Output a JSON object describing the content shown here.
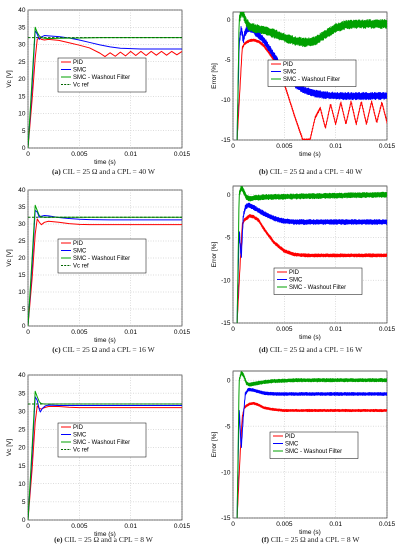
{
  "captions": [
    {
      "letter": "(a)",
      "text": "CIL = 25 Ω and a CPL = 40 W"
    },
    {
      "letter": "(b)",
      "text": "CIL = 25 Ω and a CPL = 40 W"
    },
    {
      "letter": "(c)",
      "text": "CIL = 25 Ω and a CPL = 16 W"
    },
    {
      "letter": "(d)",
      "text": "CIL = 25 Ω and a CPL = 16 W"
    },
    {
      "letter": "(e)",
      "text": "CIL = 25 Ω and a CPL = 8 W"
    },
    {
      "letter": "(f)",
      "text": "CIL = 25 Ω and a CPL = 8 W"
    }
  ],
  "colors": {
    "pid": "#ff0000",
    "smc": "#0000ff",
    "washout": "#00a000",
    "ref": "#006400"
  },
  "chart_data": [
    {
      "id": "a",
      "type": "line",
      "xlabel": "time (s)",
      "ylabel": "Vc [V]",
      "xlim": [
        0,
        0.015
      ],
      "ylim": [
        0,
        40
      ],
      "xticks": [
        0,
        0.005,
        0.01,
        0.015
      ],
      "xtick_labels": [
        "0",
        "0.005",
        "0.01",
        "0.015"
      ],
      "yticks": [
        0,
        5,
        10,
        15,
        20,
        25,
        30,
        35,
        40
      ],
      "ytick_labels": [
        "0",
        "5",
        "10",
        "15",
        "20",
        "25",
        "30",
        "35",
        "40"
      ],
      "grid": true,
      "legend_position": "center",
      "series": [
        {
          "name": "PID",
          "color": "#ff0000",
          "x": [
            0,
            0.0004,
            0.0007,
            0.0009,
            0.0011,
            0.0013,
            0.0016,
            0.002,
            0.003,
            0.004,
            0.005,
            0.006,
            0.007,
            0.0075,
            0.008,
            0.0085,
            0.009,
            0.0095,
            0.01,
            0.0105,
            0.011,
            0.0115,
            0.012,
            0.0125,
            0.013,
            0.0135,
            0.014,
            0.0145,
            0.015
          ],
          "y": [
            0,
            14,
            26,
            31.5,
            32,
            31.5,
            31.3,
            31.5,
            31.2,
            30.5,
            29.8,
            29,
            27.5,
            26.5,
            27.6,
            26.6,
            27.8,
            26.7,
            28,
            26.8,
            28,
            26.8,
            28,
            26.9,
            28,
            26.9,
            28,
            27,
            28
          ]
        },
        {
          "name": "SMC",
          "color": "#0000ff",
          "x": [
            0,
            0.0004,
            0.0007,
            0.0009,
            0.0011,
            0.0013,
            0.0016,
            0.002,
            0.003,
            0.004,
            0.005,
            0.006,
            0.007,
            0.008,
            0.009,
            0.01,
            0.011,
            0.012,
            0.013,
            0.014,
            0.015
          ],
          "y": [
            0,
            18,
            34,
            33,
            31.5,
            32.2,
            32.6,
            32.5,
            32.3,
            31.9,
            31.3,
            30.6,
            29.9,
            29.3,
            28.9,
            28.8,
            28.7,
            28.7,
            28.7,
            28.7,
            28.7
          ]
        },
        {
          "name": "SMC - Washout Filter",
          "color": "#00a000",
          "x": [
            0,
            0.0004,
            0.0007,
            0.0009,
            0.0011,
            0.0013,
            0.0016,
            0.002,
            0.003,
            0.005,
            0.007,
            0.009,
            0.011,
            0.013,
            0.015
          ],
          "y": [
            0,
            20,
            35,
            33.5,
            32.5,
            32,
            31.8,
            31.7,
            31.8,
            31.9,
            32,
            32,
            32,
            32,
            32
          ]
        },
        {
          "name": "Vc ref",
          "color": "#006400",
          "dashed": true,
          "x": [
            0,
            0.015
          ],
          "y": [
            32,
            32
          ]
        }
      ]
    },
    {
      "id": "b",
      "type": "line",
      "xlabel": "time (s)",
      "ylabel": "Error [%]",
      "xlim": [
        0,
        0.015
      ],
      "ylim": [
        -15,
        1
      ],
      "xticks": [
        0,
        0.005,
        0.01,
        0.015
      ],
      "xtick_labels": [
        "0",
        "0.005",
        "0.01",
        "0.015"
      ],
      "yticks": [
        -15,
        -10,
        -5,
        0
      ],
      "ytick_labels": [
        "-15",
        "-10",
        "-5",
        "0"
      ],
      "grid": true,
      "legend_position": "center",
      "series": [
        {
          "name": "PID",
          "color": "#ff0000",
          "noise": 0.15,
          "x": [
            0.0004,
            0.0007,
            0.0009,
            0.0011,
            0.0013,
            0.0016,
            0.002,
            0.0025,
            0.003,
            0.004,
            0.005,
            0.006,
            0.0068,
            0.0075,
            0.008,
            0.0085,
            0.009,
            0.0095,
            0.01,
            0.0105,
            0.011,
            0.0115,
            0.012,
            0.0125,
            0.013,
            0.0135,
            0.014,
            0.0145,
            0.015
          ],
          "y": [
            -15,
            -8,
            -3.5,
            -3,
            -2.8,
            -2.6,
            -2.5,
            -2.7,
            -3.2,
            -5,
            -8,
            -12,
            -15,
            -15,
            -12.2,
            -11,
            -13.5,
            -10.5,
            -13,
            -10.3,
            -13,
            -10.2,
            -13,
            -10.2,
            -13,
            -10.2,
            -12.8,
            -10.3,
            -12.8
          ]
        },
        {
          "name": "SMC",
          "color": "#0000ff",
          "noise": 0.45,
          "x": [
            0.0004,
            0.0006,
            0.0008,
            0.001,
            0.0012,
            0.0015,
            0.002,
            0.003,
            0.004,
            0.005,
            0.006,
            0.007,
            0.008,
            0.009,
            0.01,
            0.012,
            0.015
          ],
          "y": [
            -15,
            -3,
            -1,
            -2.5,
            -1.5,
            -1,
            -1.3,
            -2.5,
            -4.5,
            -6.5,
            -8,
            -8.8,
            -9.2,
            -9.4,
            -9.5,
            -9.5,
            -9.5
          ]
        },
        {
          "name": "SMC - Washout Filter",
          "color": "#00a000",
          "noise": 0.55,
          "x": [
            0.0004,
            0.0006,
            0.0008,
            0.001,
            0.0013,
            0.0016,
            0.002,
            0.003,
            0.004,
            0.005,
            0.006,
            0.007,
            0.008,
            0.009,
            0.01,
            0.011,
            0.012,
            0.013,
            0.014,
            0.015
          ],
          "y": [
            -15,
            0,
            1,
            0.8,
            -0.3,
            -0.8,
            -1,
            -1.3,
            -1.7,
            -2.2,
            -2.6,
            -2.8,
            -2.6,
            -1.8,
            -1,
            -0.6,
            -0.5,
            -0.5,
            -0.5,
            -0.5
          ]
        }
      ]
    },
    {
      "id": "c",
      "type": "line",
      "xlabel": "time (s)",
      "ylabel": "Vc [V]",
      "xlim": [
        0,
        0.015
      ],
      "ylim": [
        0,
        40
      ],
      "xticks": [
        0,
        0.005,
        0.01,
        0.015
      ],
      "xtick_labels": [
        "0",
        "0.005",
        "0.01",
        "0.015"
      ],
      "yticks": [
        0,
        5,
        10,
        15,
        20,
        25,
        30,
        35,
        40
      ],
      "ytick_labels": [
        "0",
        "5",
        "10",
        "15",
        "20",
        "25",
        "30",
        "35",
        "40"
      ],
      "grid": true,
      "legend_position": "center",
      "series": [
        {
          "name": "PID",
          "color": "#ff0000",
          "x": [
            0,
            0.0004,
            0.0007,
            0.0009,
            0.0011,
            0.0013,
            0.0016,
            0.002,
            0.003,
            0.004,
            0.005,
            0.006,
            0.008,
            0.01,
            0.012,
            0.015
          ],
          "y": [
            0,
            14,
            27,
            31.5,
            30.5,
            29.8,
            30.5,
            30.8,
            30.5,
            30.1,
            29.9,
            29.8,
            29.8,
            29.8,
            29.8,
            29.8
          ]
        },
        {
          "name": "SMC",
          "color": "#0000ff",
          "x": [
            0,
            0.0004,
            0.0007,
            0.0009,
            0.0011,
            0.0013,
            0.0016,
            0.002,
            0.003,
            0.004,
            0.005,
            0.006,
            0.008,
            0.01,
            0.012,
            0.015
          ],
          "y": [
            0,
            18,
            34,
            33.5,
            32,
            32.3,
            32.5,
            32.4,
            31.9,
            31.6,
            31.4,
            31.3,
            31.2,
            31.2,
            31.2,
            31.2
          ]
        },
        {
          "name": "SMC - Washout Filter",
          "color": "#00a000",
          "x": [
            0,
            0.0004,
            0.0007,
            0.0009,
            0.0011,
            0.0013,
            0.0016,
            0.002,
            0.003,
            0.005,
            0.008,
            0.012,
            0.015
          ],
          "y": [
            0,
            20,
            35.5,
            34,
            32.5,
            32.1,
            32,
            32,
            32,
            32,
            32,
            32,
            32
          ]
        },
        {
          "name": "Vc ref",
          "color": "#006400",
          "dashed": true,
          "x": [
            0,
            0.015
          ],
          "y": [
            32,
            32
          ]
        }
      ]
    },
    {
      "id": "d",
      "type": "line",
      "xlabel": "time (s)",
      "ylabel": "Error [%]",
      "xlim": [
        0,
        0.015
      ],
      "ylim": [
        -15,
        1
      ],
      "xticks": [
        0,
        0.005,
        0.01,
        0.015
      ],
      "xtick_labels": [
        "0",
        "0.005",
        "0.01",
        "0.015"
      ],
      "yticks": [
        -15,
        -10,
        -5,
        0
      ],
      "ytick_labels": [
        "-15",
        "-10",
        "-5",
        "0"
      ],
      "grid": true,
      "legend_position": "bottom-right",
      "series": [
        {
          "name": "PID",
          "color": "#ff0000",
          "noise": 0.18,
          "x": [
            0.0004,
            0.0007,
            0.0009,
            0.0011,
            0.0013,
            0.0016,
            0.002,
            0.0025,
            0.003,
            0.004,
            0.005,
            0.006,
            0.007,
            0.008,
            0.01,
            0.012,
            0.015
          ],
          "y": [
            -15,
            -8,
            -3.5,
            -3,
            -2.8,
            -2.5,
            -2.6,
            -3,
            -4,
            -5.6,
            -6.6,
            -7,
            -7.1,
            -7.1,
            -7.1,
            -7.1,
            -7.1
          ]
        },
        {
          "name": "SMC",
          "color": "#0000ff",
          "noise": 0.28,
          "x": [
            0.0004,
            0.0006,
            0.0008,
            0.001,
            0.0012,
            0.0015,
            0.002,
            0.003,
            0.004,
            0.005,
            0.006,
            0.008,
            0.01,
            0.012,
            0.015
          ],
          "y": [
            -15,
            -4,
            -7.5,
            -2.5,
            -1.5,
            -1.2,
            -1.5,
            -2.2,
            -2.8,
            -3.1,
            -3.2,
            -3.2,
            -3.2,
            -3.2,
            -3.2
          ]
        },
        {
          "name": "SMC - Washout Filter",
          "color": "#00a000",
          "noise": 0.3,
          "x": [
            0.0004,
            0.0006,
            0.0008,
            0.001,
            0.0013,
            0.0016,
            0.002,
            0.003,
            0.005,
            0.007,
            0.009,
            0.011,
            0.013,
            0.015
          ],
          "y": [
            -15,
            0,
            0.8,
            0.5,
            -0.3,
            -0.5,
            -0.4,
            -0.3,
            -0.25,
            -0.2,
            -0.15,
            -0.1,
            -0.05,
            0
          ]
        }
      ]
    },
    {
      "id": "e",
      "type": "line",
      "xlabel": "time (s)",
      "ylabel": "Vc [V]",
      "xlim": [
        0,
        0.015
      ],
      "ylim": [
        0,
        40
      ],
      "xticks": [
        0,
        0.005,
        0.01,
        0.015
      ],
      "xtick_labels": [
        "0",
        "0.005",
        "0.01",
        "0.015"
      ],
      "yticks": [
        0,
        5,
        10,
        15,
        20,
        25,
        30,
        35,
        40
      ],
      "ytick_labels": [
        "0",
        "5",
        "10",
        "15",
        "20",
        "25",
        "30",
        "35",
        "40"
      ],
      "grid": true,
      "legend_position": "center",
      "series": [
        {
          "name": "PID",
          "color": "#ff0000",
          "x": [
            0,
            0.0004,
            0.0007,
            0.0009,
            0.0011,
            0.0013,
            0.0016,
            0.002,
            0.003,
            0.004,
            0.005,
            0.007,
            0.01,
            0.015
          ],
          "y": [
            0,
            14,
            27,
            31.5,
            30.8,
            30.6,
            31,
            31.3,
            31.3,
            31.1,
            31,
            31,
            31,
            31
          ]
        },
        {
          "name": "SMC",
          "color": "#0000ff",
          "x": [
            0,
            0.0004,
            0.0007,
            0.0009,
            0.0011,
            0.0012,
            0.0014,
            0.0017,
            0.002,
            0.003,
            0.005,
            0.008,
            0.015
          ],
          "y": [
            0,
            18,
            34,
            33,
            30.5,
            29.8,
            30.8,
            31.5,
            31.7,
            31.6,
            31.6,
            31.6,
            31.6
          ]
        },
        {
          "name": "SMC - Washout Filter",
          "color": "#00a000",
          "x": [
            0,
            0.0004,
            0.0007,
            0.0009,
            0.0011,
            0.0013,
            0.0016,
            0.002,
            0.003,
            0.005,
            0.008,
            0.015
          ],
          "y": [
            0,
            20,
            35.5,
            34,
            32.6,
            32.1,
            32,
            32,
            32,
            32,
            32,
            32
          ]
        },
        {
          "name": "Vc ref",
          "color": "#006400",
          "dashed": true,
          "x": [
            0,
            0.015
          ],
          "y": [
            32,
            32
          ]
        }
      ]
    },
    {
      "id": "f",
      "type": "line",
      "xlabel": "time (s)",
      "ylabel": "Error [%]",
      "xlim": [
        0,
        0.015
      ],
      "ylim": [
        -15,
        1
      ],
      "xticks": [
        0,
        0.005,
        0.01,
        0.015
      ],
      "xtick_labels": [
        "0",
        "0.005",
        "0.01",
        "0.015"
      ],
      "yticks": [
        -15,
        -10,
        -5,
        0
      ],
      "ytick_labels": [
        "-15",
        "-10",
        "-5",
        "0"
      ],
      "grid": true,
      "legend_position": "center-right",
      "series": [
        {
          "name": "PID",
          "color": "#ff0000",
          "noise": 0.12,
          "x": [
            0.0004,
            0.0007,
            0.0009,
            0.0011,
            0.0013,
            0.0016,
            0.002,
            0.0025,
            0.003,
            0.004,
            0.005,
            0.006,
            0.008,
            0.01,
            0.012,
            0.015
          ],
          "y": [
            -15,
            -8,
            -4,
            -3,
            -2.8,
            -2.6,
            -2.5,
            -2.7,
            -3,
            -3.2,
            -3.3,
            -3.3,
            -3.3,
            -3.3,
            -3.3,
            -3.3
          ]
        },
        {
          "name": "SMC",
          "color": "#0000ff",
          "noise": 0.16,
          "x": [
            0.0004,
            0.0006,
            0.0008,
            0.001,
            0.0012,
            0.0015,
            0.002,
            0.003,
            0.004,
            0.006,
            0.008,
            0.01,
            0.015
          ],
          "y": [
            -15,
            -3,
            -7.5,
            -4,
            -1.5,
            -1,
            -1.1,
            -1.4,
            -1.5,
            -1.5,
            -1.5,
            -1.5,
            -1.5
          ]
        },
        {
          "name": "SMC - Washout Filter",
          "color": "#00a000",
          "noise": 0.18,
          "x": [
            0.0004,
            0.0006,
            0.0008,
            0.001,
            0.0013,
            0.0016,
            0.002,
            0.003,
            0.004,
            0.006,
            0.008,
            0.01,
            0.015
          ],
          "y": [
            -15,
            0,
            0.8,
            0.6,
            -0.3,
            -0.5,
            -0.4,
            -0.2,
            -0.1,
            0,
            0,
            0,
            0
          ]
        }
      ]
    }
  ]
}
